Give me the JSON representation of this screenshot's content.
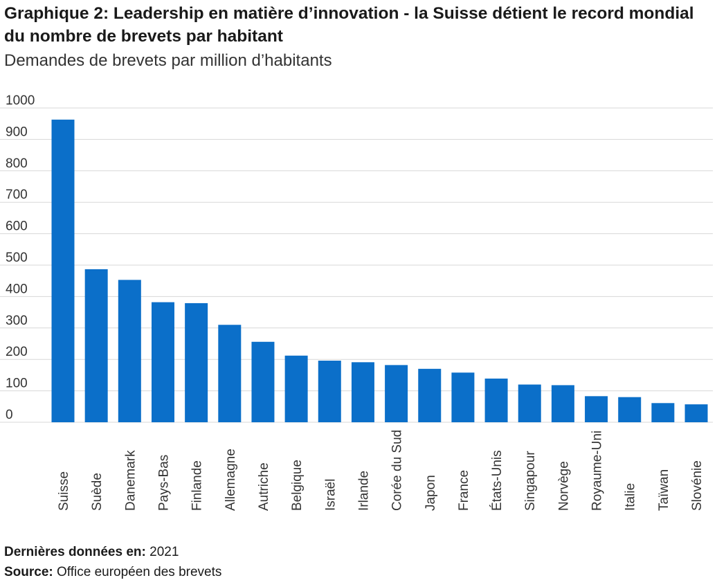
{
  "chart_data": {
    "type": "bar",
    "title": "Graphique 2: Leadership en matière d’innovation - la Suisse détient le record mondial du nombre de brevets par habitant",
    "subtitle": "Demandes de brevets par million d’habitants",
    "xlabel": "",
    "ylabel": "",
    "ylim": [
      0,
      1000
    ],
    "yticks": [
      0,
      100,
      200,
      300,
      400,
      500,
      600,
      700,
      800,
      900,
      1000
    ],
    "grid": true,
    "categories": [
      "Suisse",
      "Suède",
      "Danemark",
      "Pays-Bas",
      "Finlande",
      "Allemagne",
      "Autriche",
      "Belgique",
      "Israël",
      "Irlande",
      "Corée du Sud",
      "Japon",
      "France",
      "États-Unis",
      "Singapour",
      "Norvège",
      "Royaume-Uni",
      "Italie",
      "Taïwan",
      "Slovénie"
    ],
    "values": [
      963,
      487,
      453,
      382,
      379,
      310,
      256,
      212,
      196,
      191,
      182,
      170,
      158,
      139,
      120,
      118,
      83,
      80,
      61,
      57
    ],
    "colors": {
      "bar": "#0b6fc9",
      "grid": "#d7d7d7",
      "text": "#333333"
    }
  },
  "footer": {
    "last_data_label": "Dernières données en:",
    "last_data_value": "2021",
    "source_label": "Source:",
    "source_value": "Office européen des brevets"
  }
}
